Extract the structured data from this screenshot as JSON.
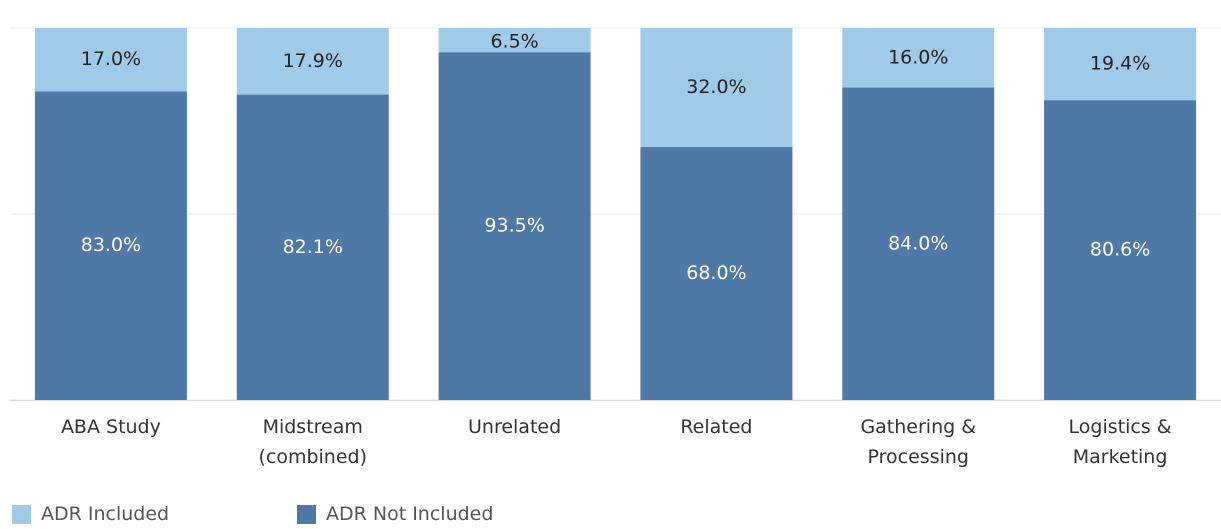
{
  "chart_data": {
    "type": "bar",
    "stacked": true,
    "categories": [
      "ABA Study",
      "Midstream (combined)",
      "Unrelated",
      "Related",
      "Gathering & Processing",
      "Logistics & Marketing"
    ],
    "series": [
      {
        "name": "ADR Included",
        "color": "#a0cbe8",
        "values": [
          17.0,
          17.9,
          6.5,
          32.0,
          16.0,
          19.4
        ],
        "value_labels": [
          "17.0%",
          "17.9%",
          "6.5%",
          "32.0%",
          "16.0%",
          "19.4%"
        ]
      },
      {
        "name": "ADR Not Included",
        "color": "#4e79a7",
        "values": [
          83.0,
          82.1,
          93.5,
          68.0,
          84.0,
          80.6
        ],
        "value_labels": [
          "83.0%",
          "82.1%",
          "93.5%",
          "68.0%",
          "84.0%",
          "80.6%"
        ]
      }
    ],
    "ylim": [
      0,
      100
    ],
    "yticks": [
      0,
      50,
      100
    ],
    "grid": true
  }
}
